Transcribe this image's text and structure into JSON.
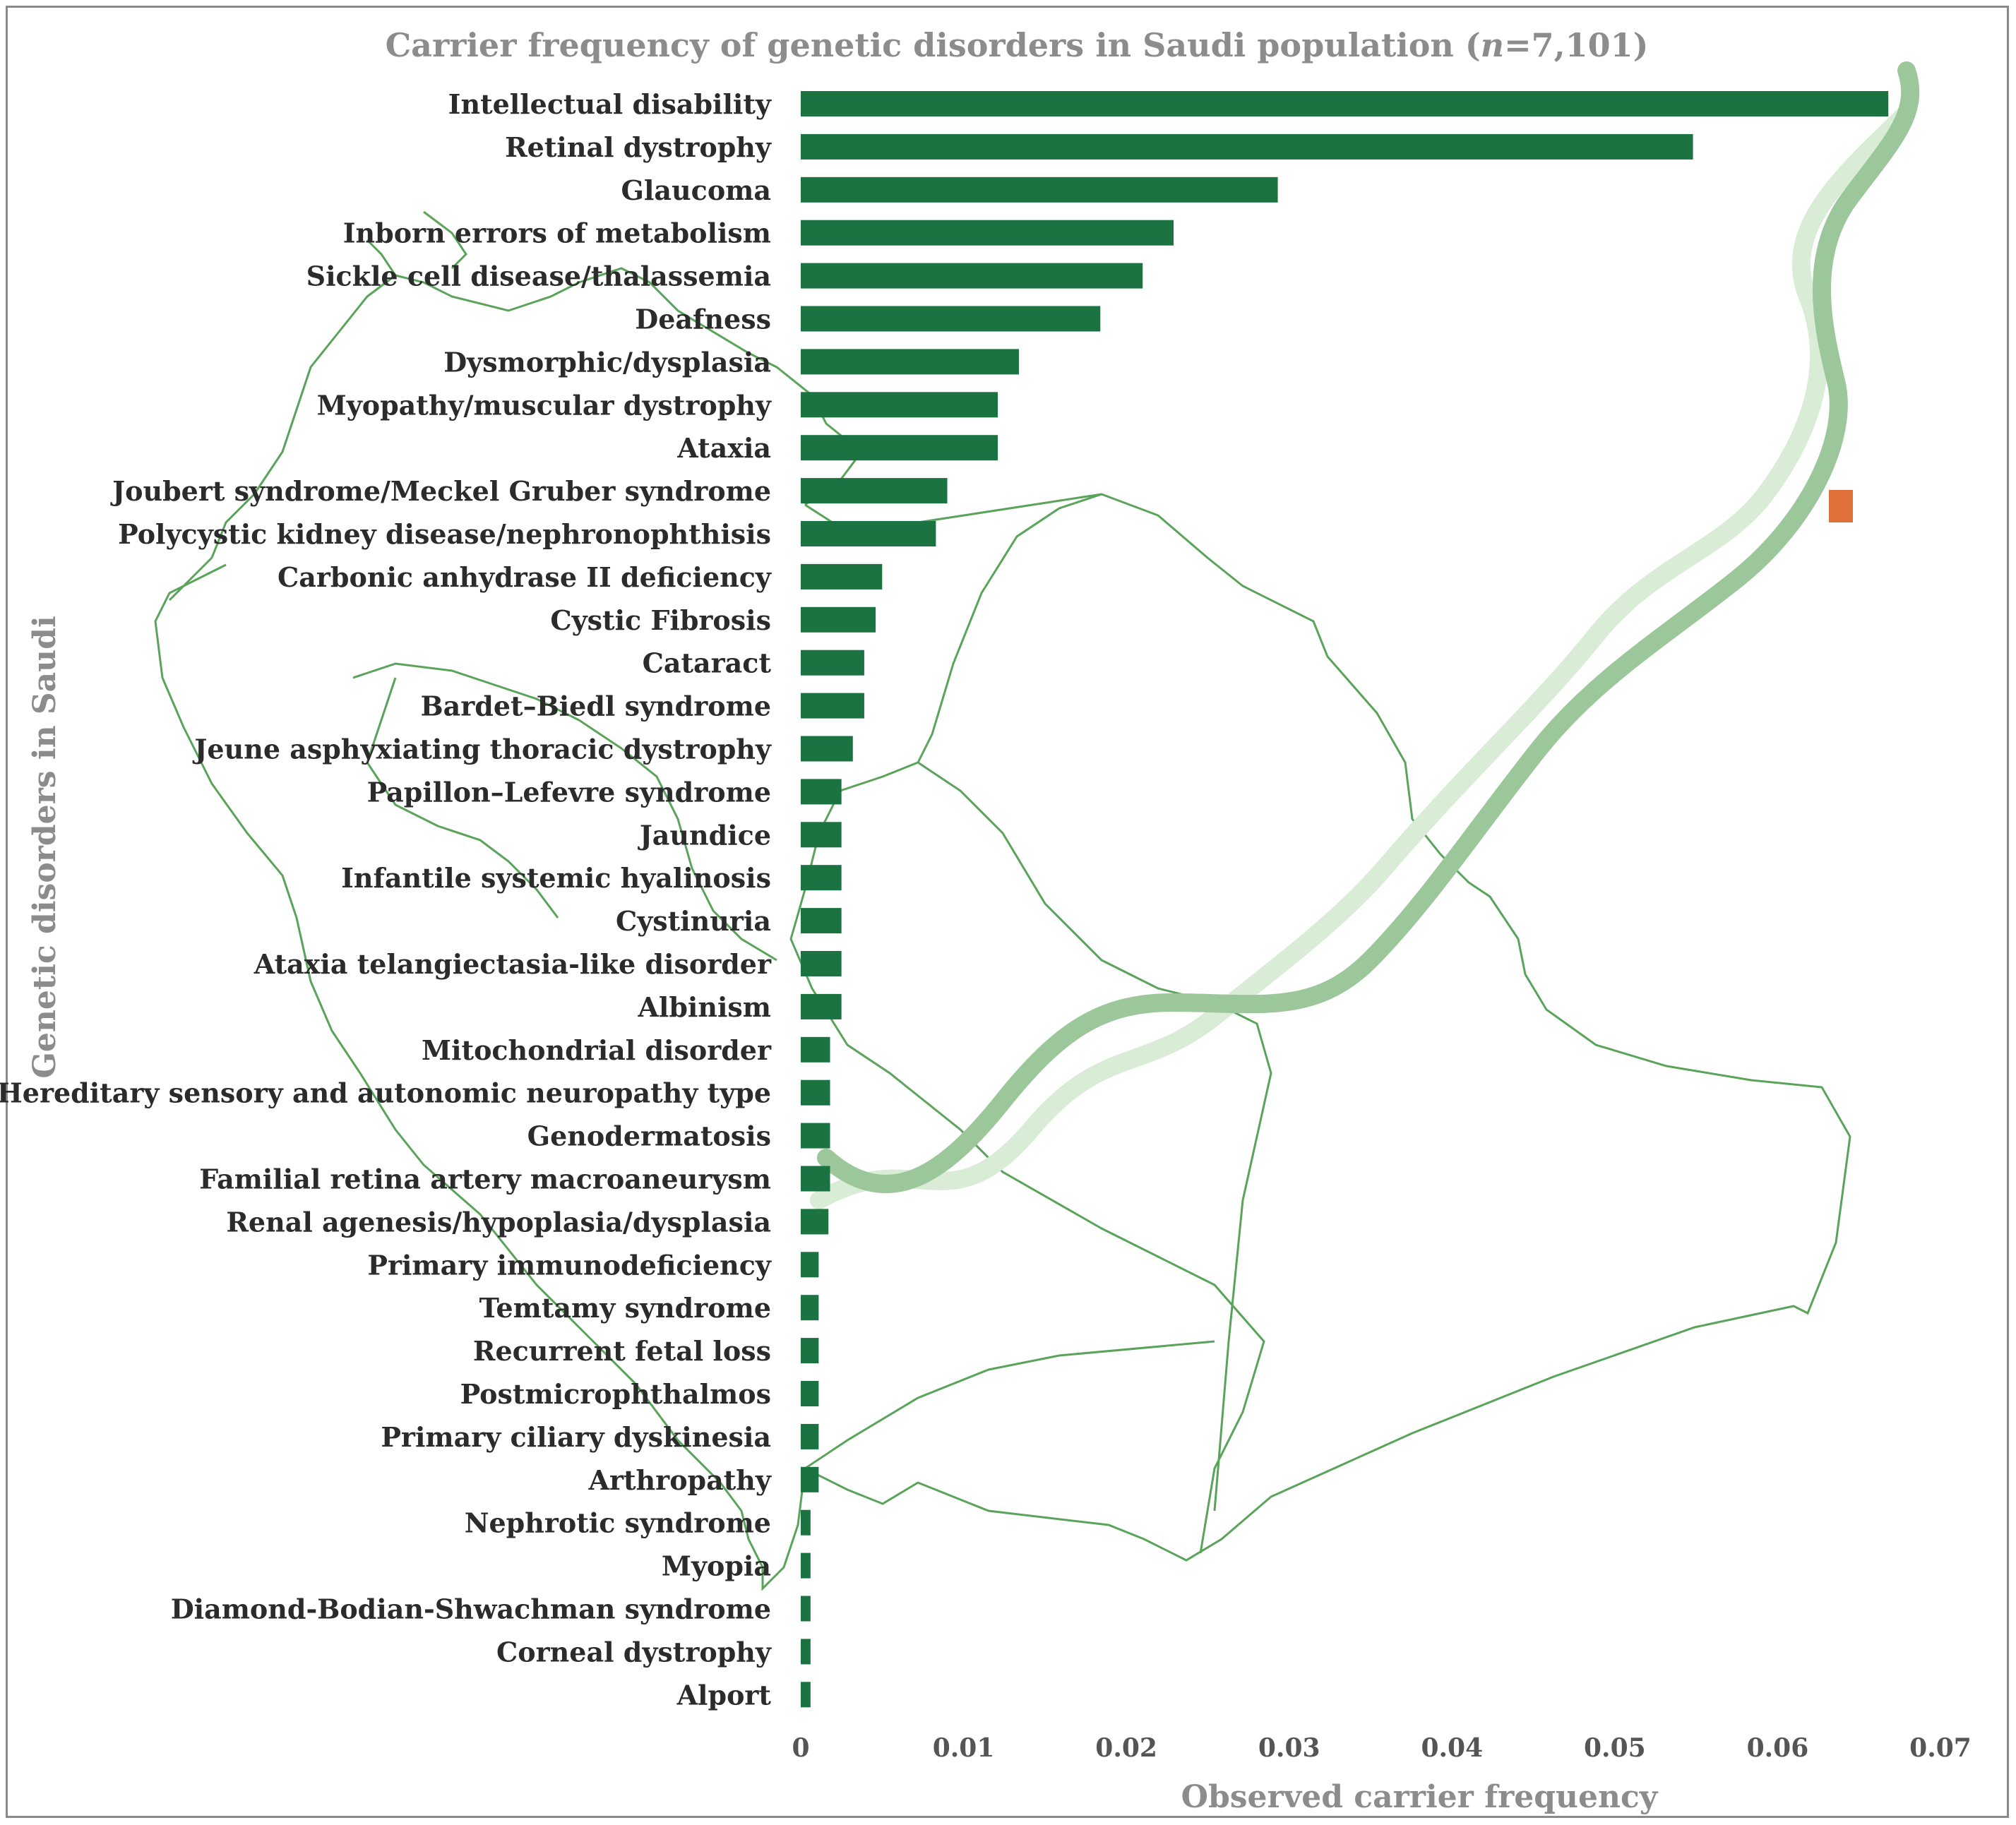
{
  "chart_data": {
    "type": "bar",
    "orientation": "horizontal",
    "title": "Carrier frequency of genetic disorders in Saudi population (n=7,101)",
    "title_parts": {
      "prefix": "Carrier frequency of genetic disorders in Saudi population (",
      "n_symbol": "n",
      "suffix": "=7,101)"
    },
    "xlabel": "Observed carrier frequency",
    "ylabel": "Genetic disorders in Saudi",
    "xlim": [
      0,
      0.07
    ],
    "xticks": [
      "0",
      "0.01",
      "0.02",
      "0.03",
      "0.04",
      "0.05",
      "0.06",
      "0.07"
    ],
    "grid": false,
    "legend": "none",
    "bar_color": "#1a7340",
    "categories": [
      "Intellectual disability",
      "Retinal dystrophy",
      "Glaucoma",
      "Inborn errors of metabolism",
      "Sickle cell disease/thalassemia",
      "Deafness",
      "Dysmorphic/dysplasia",
      "Myopathy/muscular dystrophy",
      "Ataxia",
      "Joubert syndrome/Meckel Gruber syndrome",
      "Polycystic kidney disease/nephronophthisis",
      "Carbonic anhydrase II deficiency",
      "Cystic Fibrosis",
      "Cataract",
      "Bardet–Biedl syndrome",
      "Jeune asphyxiating thoracic dystrophy",
      "Papillon–Lefevre syndrome",
      "Jaundice",
      "Infantile systemic hyalinosis",
      "Cystinuria",
      "Ataxia telangiectasia-like disorder",
      "Albinism",
      "Mitochondrial disorder",
      "Hereditary sensory and autonomic neuropathy type",
      "Genodermatosis",
      "Familial retina artery macroaneurysm",
      "Renal agenesis/hypoplasia/dysplasia",
      "Primary immunodeficiency",
      "Temtamy syndrome",
      "Recurrent fetal loss",
      "Postmicrophthalmos",
      "Primary ciliary dyskinesia",
      "Arthropathy",
      "Nephrotic syndrome",
      "Myopia",
      "Diamond-Bodian-Shwachman syndrome",
      "Corneal dystrophy",
      "Alport"
    ],
    "values": [
      0.0668,
      0.0548,
      0.0293,
      0.0229,
      0.021,
      0.0184,
      0.0134,
      0.0121,
      0.0121,
      0.009,
      0.0083,
      0.005,
      0.0046,
      0.0039,
      0.0039,
      0.0032,
      0.0025,
      0.0025,
      0.0025,
      0.0025,
      0.0025,
      0.0025,
      0.0018,
      0.0018,
      0.0018,
      0.0018,
      0.0017,
      0.0011,
      0.0011,
      0.0011,
      0.0011,
      0.0011,
      0.0011,
      0.0006,
      0.0006,
      0.0006,
      0.0006,
      0.0006
    ]
  },
  "background": {
    "map_outline_color": "#5aa35a",
    "dna_strand_dark": "#9bc79b",
    "dna_strand_light": "#d9ecd6",
    "highlight_color": "#e0703a"
  }
}
